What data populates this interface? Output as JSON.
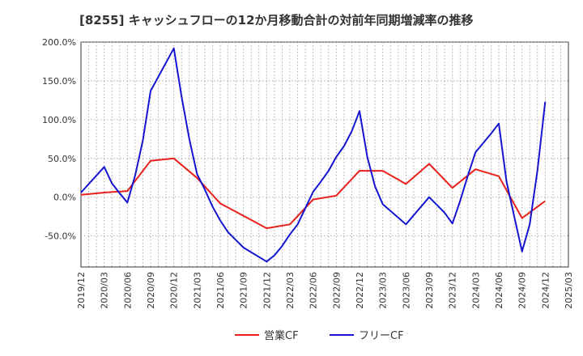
{
  "chart_data": {
    "type": "line",
    "title": "[8255]  キャッシュフローの12か月移動合計の対前年同期増減率の推移",
    "xlabel": "",
    "ylabel": "",
    "x_ticks": [
      "2019/12",
      "2020/03",
      "2020/06",
      "2020/09",
      "2020/12",
      "2021/03",
      "2021/06",
      "2021/09",
      "2021/12",
      "2022/03",
      "2022/06",
      "2022/09",
      "2022/12",
      "2023/03",
      "2023/06",
      "2023/09",
      "2023/12",
      "2024/03",
      "2024/06",
      "2024/09",
      "2024/12",
      "2025/03"
    ],
    "y_ticks": [
      "200.0%",
      "150.0%",
      "100.0%",
      "50.0%",
      "0.0%",
      "-50.0%"
    ],
    "ylim": [
      -90,
      200
    ],
    "grid": true,
    "legend_position": "bottom",
    "series": [
      {
        "name": "営業CF",
        "color": "#e8201b",
        "points": [
          [
            "2019/12",
            3
          ],
          [
            "2020/03",
            6
          ],
          [
            "2020/06",
            8
          ],
          [
            "2020/09",
            47
          ],
          [
            "2020/12",
            50
          ],
          [
            "2021/03",
            25
          ],
          [
            "2021/06",
            -8
          ],
          [
            "2021/09",
            -24
          ],
          [
            "2021/12",
            -40
          ],
          [
            "2022/03",
            -35
          ],
          [
            "2022/06",
            -3
          ],
          [
            "2022/09",
            2
          ],
          [
            "2022/12",
            34
          ],
          [
            "2023/03",
            34
          ],
          [
            "2023/06",
            17
          ],
          [
            "2023/09",
            43
          ],
          [
            "2023/12",
            12
          ],
          [
            "2024/03",
            36
          ],
          [
            "2024/06",
            27
          ],
          [
            "2024/09",
            -27
          ],
          [
            "2024/12",
            -5
          ]
        ]
      },
      {
        "name": "フリーCF",
        "color": "#1414d2",
        "points": [
          [
            "2019/12",
            6
          ],
          [
            "2020/03",
            39
          ],
          [
            "2020/04",
            18
          ],
          [
            "2020/05",
            5
          ],
          [
            "2020/06",
            -7
          ],
          [
            "2020/07",
            28
          ],
          [
            "2020/08",
            73
          ],
          [
            "2020/09",
            137
          ],
          [
            "2020/12",
            192
          ],
          [
            "2021/01",
            130
          ],
          [
            "2021/02",
            75
          ],
          [
            "2021/03",
            30
          ],
          [
            "2021/04",
            10
          ],
          [
            "2021/05",
            -12
          ],
          [
            "2021/06",
            -30
          ],
          [
            "2021/07",
            -45
          ],
          [
            "2021/08",
            -55
          ],
          [
            "2021/09",
            -65
          ],
          [
            "2021/12",
            -83
          ],
          [
            "2022/01",
            -75
          ],
          [
            "2022/02",
            -63
          ],
          [
            "2022/03",
            -48
          ],
          [
            "2022/04",
            -35
          ],
          [
            "2022/06",
            7
          ],
          [
            "2022/07",
            20
          ],
          [
            "2022/08",
            34
          ],
          [
            "2022/09",
            52
          ],
          [
            "2022/10",
            66
          ],
          [
            "2022/11",
            85
          ],
          [
            "2022/12",
            111
          ],
          [
            "2023/01",
            52
          ],
          [
            "2023/02",
            14
          ],
          [
            "2023/03",
            -9
          ],
          [
            "2023/06",
            -35
          ],
          [
            "2023/09",
            0
          ],
          [
            "2023/10",
            -10
          ],
          [
            "2023/11",
            -20
          ],
          [
            "2023/12",
            -34
          ],
          [
            "2024/01",
            -5
          ],
          [
            "2024/02",
            28
          ],
          [
            "2024/03",
            58
          ],
          [
            "2024/04",
            70
          ],
          [
            "2024/05",
            82
          ],
          [
            "2024/06",
            95
          ],
          [
            "2024/07",
            20
          ],
          [
            "2024/08",
            -25
          ],
          [
            "2024/09",
            -70
          ],
          [
            "2024/10",
            -35
          ],
          [
            "2024/11",
            35
          ],
          [
            "2024/12",
            123
          ]
        ]
      }
    ]
  }
}
